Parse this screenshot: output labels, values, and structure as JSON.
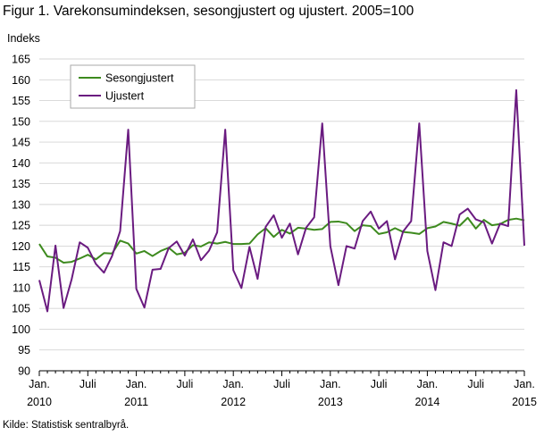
{
  "figure": {
    "title": "Figur 1. Varekonsumindeksen, sesongjustert og ujustert. 2005=100",
    "y_unit": "Indeks",
    "source": "Kilde: Statistisk sentralbyrå."
  },
  "chart_data": {
    "type": "line",
    "title": "Figur 1. Varekonsumindeksen, sesongjustert og ujustert. 2005=100",
    "xlabel": "",
    "ylabel": "Indeks",
    "ylim": [
      90,
      165
    ],
    "yticks": [
      90,
      95,
      100,
      105,
      110,
      115,
      120,
      125,
      130,
      135,
      140,
      145,
      150,
      155,
      160,
      165
    ],
    "grid": true,
    "legend_position": "top-left",
    "x": [
      "2010-01",
      "2010-02",
      "2010-03",
      "2010-04",
      "2010-05",
      "2010-06",
      "2010-07",
      "2010-08",
      "2010-09",
      "2010-10",
      "2010-11",
      "2010-12",
      "2011-01",
      "2011-02",
      "2011-03",
      "2011-04",
      "2011-05",
      "2011-06",
      "2011-07",
      "2011-08",
      "2011-09",
      "2011-10",
      "2011-11",
      "2011-12",
      "2012-01",
      "2012-02",
      "2012-03",
      "2012-04",
      "2012-05",
      "2012-06",
      "2012-07",
      "2012-08",
      "2012-09",
      "2012-10",
      "2012-11",
      "2012-12",
      "2013-01",
      "2013-02",
      "2013-03",
      "2013-04",
      "2013-05",
      "2013-06",
      "2013-07",
      "2013-08",
      "2013-09",
      "2013-10",
      "2013-11",
      "2013-12",
      "2014-01",
      "2014-02",
      "2014-03",
      "2014-04",
      "2014-05",
      "2014-06",
      "2014-07",
      "2014-08",
      "2014-09",
      "2014-10",
      "2014-11",
      "2014-12",
      "2015-01"
    ],
    "x_tick_labels": [
      {
        "month": 0,
        "lines": [
          "Jan.",
          "2010"
        ]
      },
      {
        "month": 6,
        "lines": [
          "Juli",
          ""
        ]
      },
      {
        "month": 12,
        "lines": [
          "Jan.",
          "2011"
        ]
      },
      {
        "month": 18,
        "lines": [
          "Juli",
          ""
        ]
      },
      {
        "month": 24,
        "lines": [
          "Jan.",
          "2012"
        ]
      },
      {
        "month": 30,
        "lines": [
          "Juli",
          ""
        ]
      },
      {
        "month": 36,
        "lines": [
          "Jan.",
          "2013"
        ]
      },
      {
        "month": 42,
        "lines": [
          "Juli",
          ""
        ]
      },
      {
        "month": 48,
        "lines": [
          "Jan.",
          "2014"
        ]
      },
      {
        "month": 54,
        "lines": [
          "Juli",
          ""
        ]
      },
      {
        "month": 60,
        "lines": [
          "Jan.",
          "2015"
        ]
      }
    ],
    "series": [
      {
        "name": "Sesongjustert",
        "color": "#3d8a1e",
        "values": [
          120.5,
          117.5,
          117.2,
          116.0,
          116.2,
          117.0,
          117.9,
          116.8,
          118.3,
          118.2,
          121.3,
          120.6,
          118.2,
          118.8,
          117.6,
          118.8,
          119.6,
          118.0,
          118.4,
          120.2,
          119.9,
          120.9,
          120.6,
          121.0,
          120.5,
          120.5,
          120.6,
          122.8,
          124.3,
          122.2,
          123.9,
          123.0,
          124.4,
          124.2,
          123.9,
          124.1,
          125.8,
          125.9,
          125.5,
          123.6,
          125.0,
          124.8,
          122.9,
          123.3,
          124.3,
          123.4,
          123.2,
          122.9,
          124.3,
          124.7,
          125.8,
          125.4,
          124.9,
          126.8,
          124.2,
          126.3,
          125.0,
          125.3,
          126.3,
          126.6,
          126.2
        ]
      },
      {
        "name": "Ujustert",
        "color": "#6a1b80",
        "values": [
          111.8,
          104.3,
          120.1,
          105.1,
          112.0,
          120.9,
          119.6,
          115.7,
          113.6,
          117.6,
          123.6,
          148.0,
          109.7,
          105.2,
          114.3,
          114.5,
          119.5,
          121.1,
          117.7,
          121.6,
          116.6,
          118.9,
          123.3,
          148.0,
          114.2,
          109.9,
          119.8,
          112.1,
          124.6,
          127.4,
          122.0,
          125.4,
          118.0,
          124.4,
          126.9,
          149.5,
          120.0,
          110.6,
          120.0,
          119.4,
          126.0,
          128.3,
          124.2,
          126.0,
          116.8,
          123.5,
          126.0,
          149.5,
          118.8,
          109.4,
          120.9,
          120.0,
          127.6,
          129.0,
          126.4,
          125.7,
          120.6,
          125.4,
          124.8,
          157.5,
          120.1
        ]
      }
    ]
  }
}
